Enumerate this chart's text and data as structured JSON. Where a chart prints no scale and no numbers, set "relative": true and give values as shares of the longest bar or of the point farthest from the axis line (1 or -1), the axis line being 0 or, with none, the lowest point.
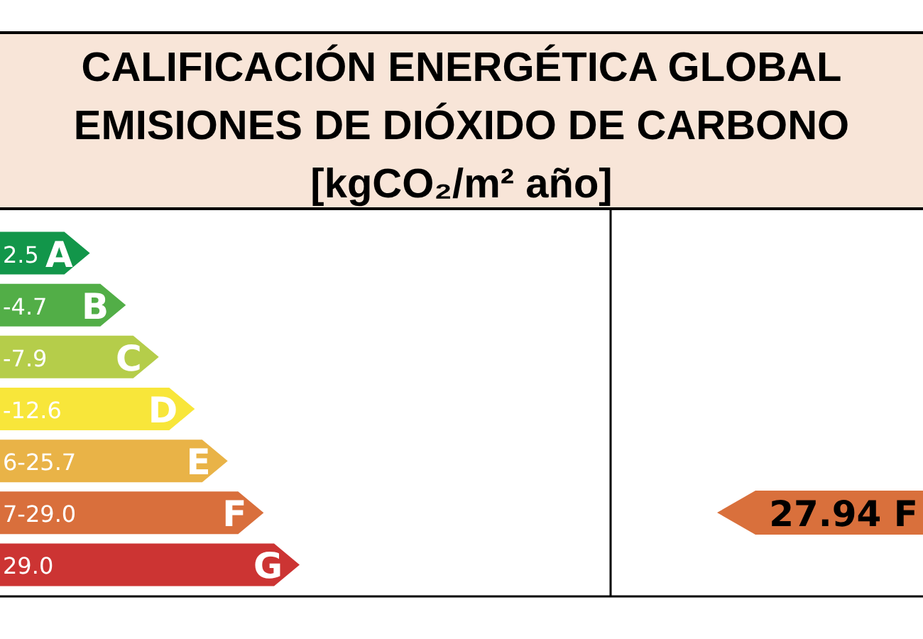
{
  "chart_data": {
    "type": "bar",
    "orientation": "horizontal",
    "relative": true,
    "title": "CALIFICACIÓN ENERGÉTICA GLOBAL\nEMISIONES DE DIÓXIDO DE CARBONO",
    "subtitle": "[kgCO₂/m² año]",
    "categories": [
      "A",
      "B",
      "C",
      "D",
      "E",
      "F",
      "G"
    ],
    "values": [
      0.3,
      0.42,
      0.53,
      0.65,
      0.76,
      0.88,
      1
    ],
    "colors": [
      "#12964a",
      "#52ae47",
      "#b5cd4a",
      "#f8e63a",
      "#e9b347",
      "#d96f3c",
      "#cc3433"
    ],
    "annotations": [
      "2.5",
      "-4.7",
      "-7.9",
      "-12.6",
      "6-25.7",
      "7-29.0",
      "29.0",
      "27.94 F"
    ]
  }
}
